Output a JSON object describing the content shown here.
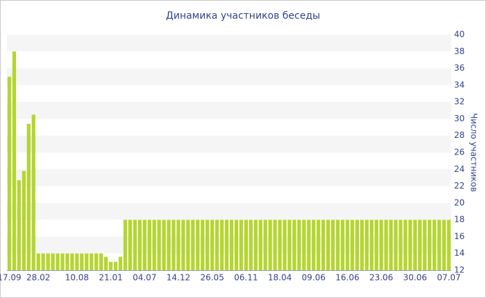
{
  "chart_data": {
    "type": "bar",
    "title": "Динамика участников беседы",
    "y_axis_label": "Число участников",
    "categories": [
      "17.09",
      null,
      null,
      null,
      null,
      null,
      "28.02",
      null,
      null,
      null,
      null,
      null,
      null,
      null,
      "10.08",
      null,
      null,
      null,
      null,
      null,
      null,
      "21.01",
      null,
      null,
      null,
      null,
      null,
      null,
      "04.07",
      null,
      null,
      null,
      null,
      null,
      null,
      "14.12",
      null,
      null,
      null,
      null,
      null,
      null,
      "26.05",
      null,
      null,
      null,
      null,
      null,
      null,
      "06.11",
      null,
      null,
      null,
      null,
      null,
      null,
      "18.04",
      null,
      null,
      null,
      null,
      null,
      null,
      "09.06",
      null,
      null,
      null,
      null,
      null,
      null,
      "16.06",
      null,
      null,
      null,
      null,
      null,
      null,
      "23.06",
      null,
      null,
      null,
      null,
      null,
      null,
      "30.06",
      null,
      null,
      null,
      null,
      null,
      null,
      "07.07"
    ],
    "values": [
      35,
      38,
      22.7,
      23.8,
      29.4,
      30.5,
      14,
      14,
      14,
      14,
      14,
      14,
      14,
      14,
      14,
      14,
      14,
      14,
      14,
      14,
      13.6,
      13,
      13,
      13.6,
      18,
      18,
      18,
      18,
      18,
      18,
      18,
      18,
      18,
      18,
      18,
      18,
      18,
      18,
      18,
      18,
      18,
      18,
      18,
      18,
      18,
      18,
      18,
      18,
      18,
      18,
      18,
      18,
      18,
      18,
      18,
      18,
      18,
      18,
      18,
      18,
      18,
      18,
      18,
      18,
      18,
      18,
      18,
      18,
      18,
      18,
      18,
      18,
      18,
      18,
      18,
      18,
      18,
      18,
      18,
      18,
      18,
      18,
      18,
      18,
      18,
      18,
      18,
      18,
      18,
      18,
      18,
      18
    ],
    "color": "#b5d531",
    "ylim": [
      12,
      40
    ],
    "yticks": [
      12,
      14,
      16,
      18,
      20,
      22,
      24,
      26,
      28,
      30,
      32,
      34,
      36,
      38,
      40
    ],
    "y_axis_position": "right",
    "grid": true
  }
}
